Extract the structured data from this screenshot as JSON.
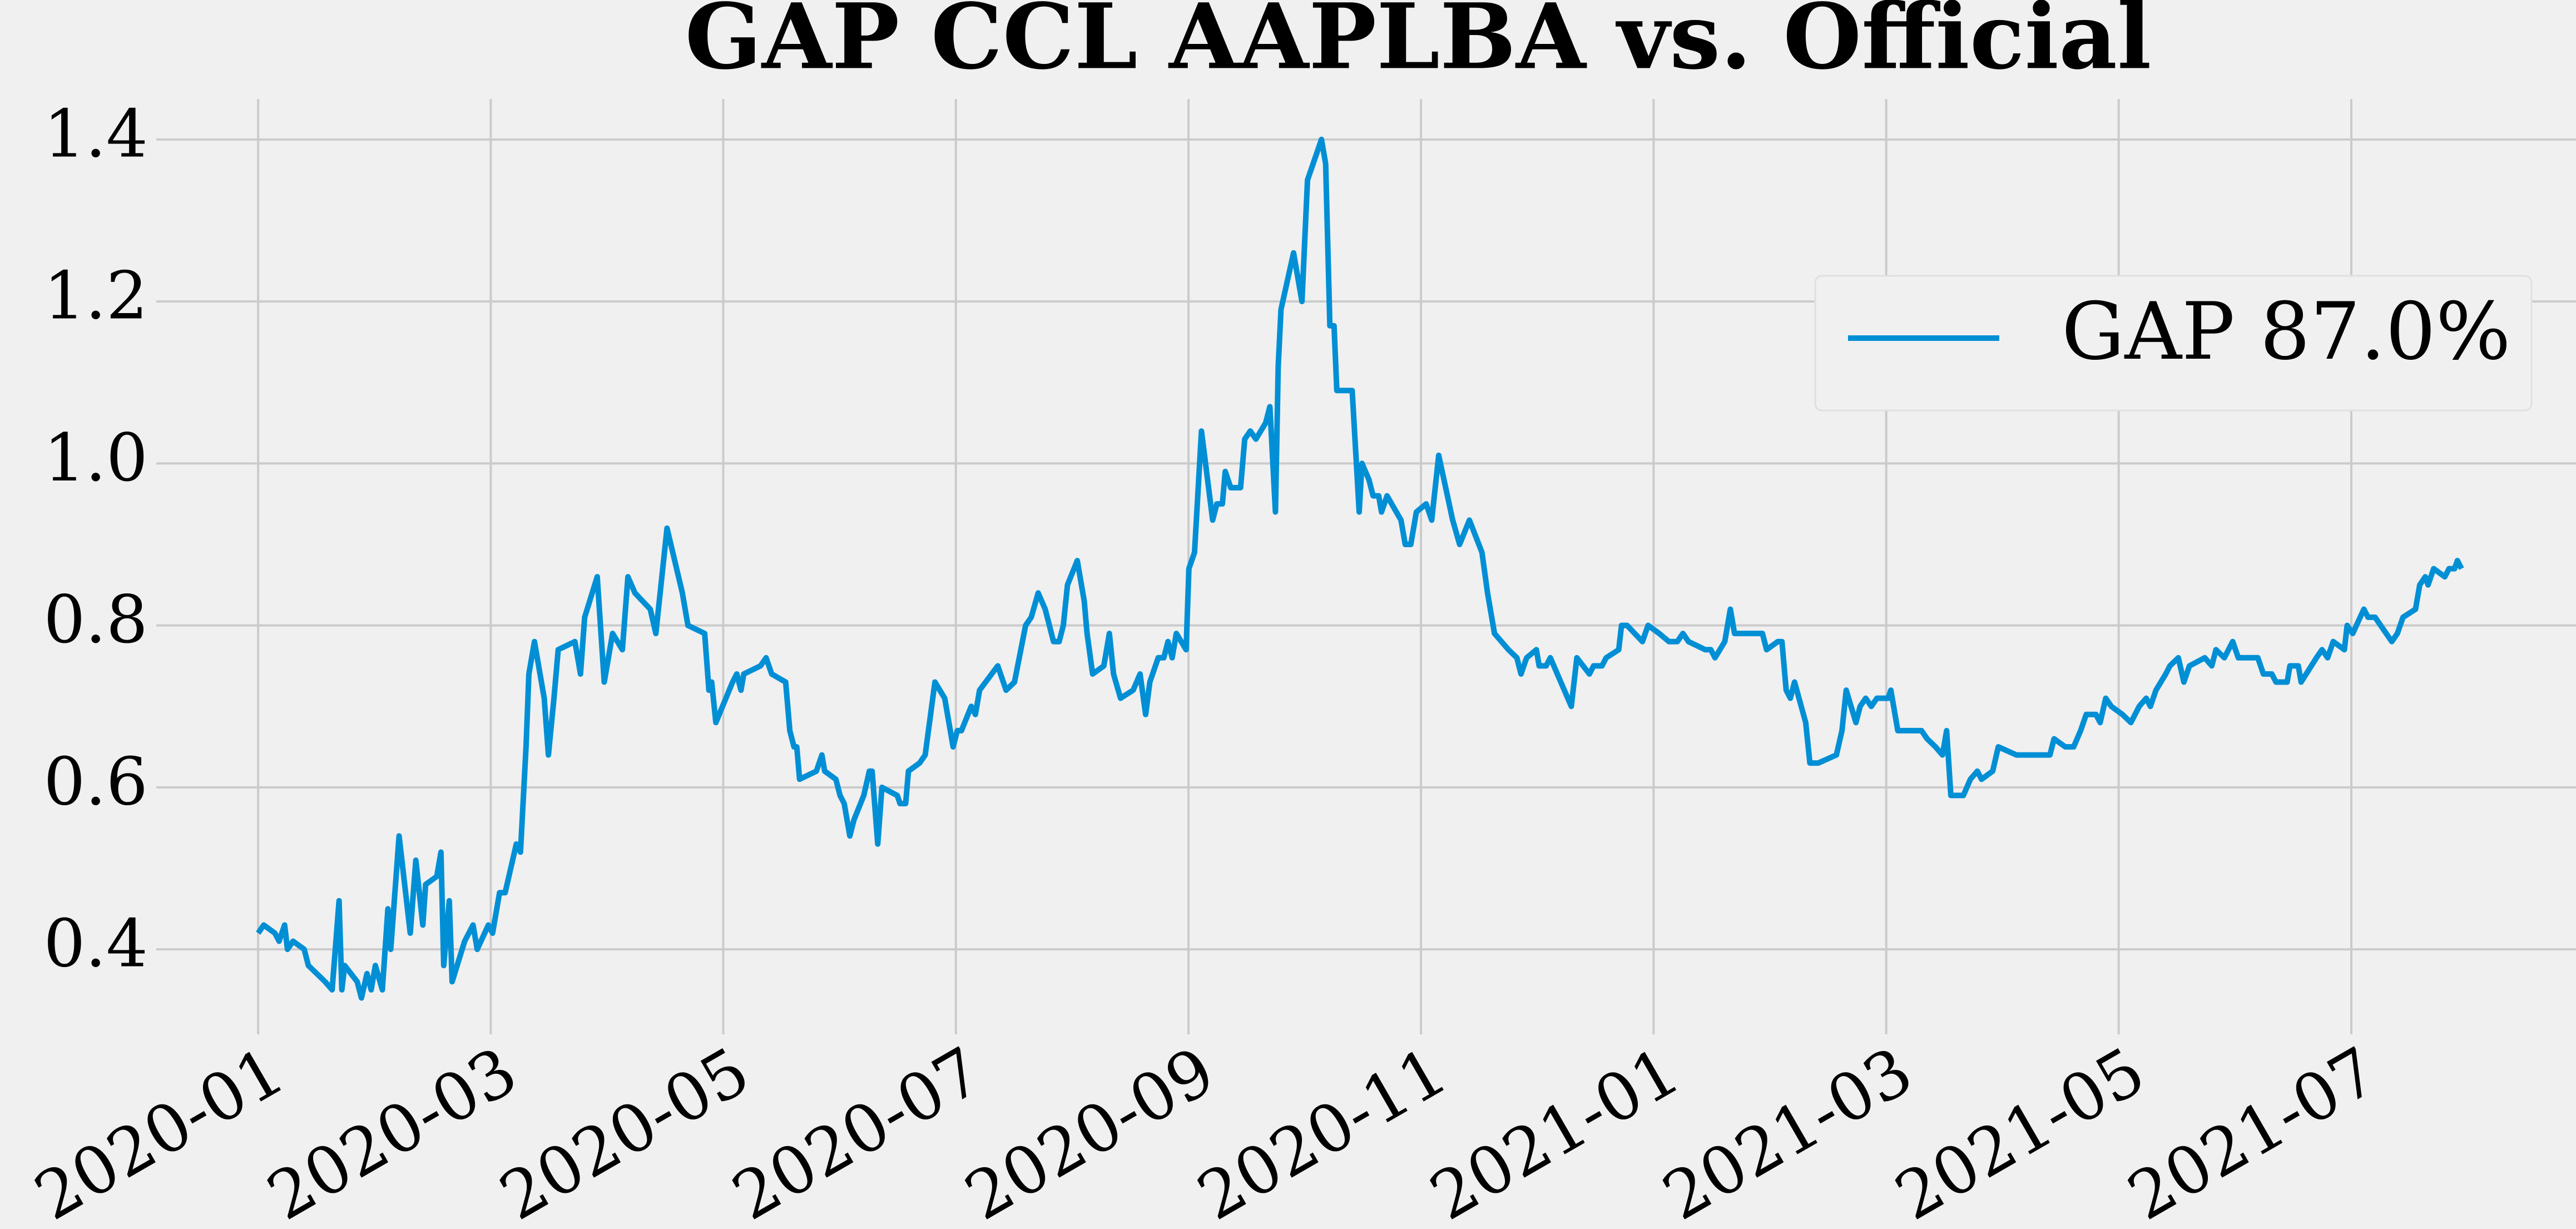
{
  "chart_data": {
    "type": "line",
    "title": "GAP CCL AAPLBA vs. Official",
    "x": [
      2020.0,
      2020.004,
      2020.012,
      2020.015,
      2020.019,
      2020.021,
      2020.025,
      2020.033,
      2020.036,
      2020.042,
      2020.048,
      2020.053,
      2020.058,
      2020.06,
      2020.062,
      2020.071,
      2020.074,
      2020.078,
      2020.081,
      2020.084,
      2020.089,
      2020.093,
      2020.095,
      2020.101,
      2020.109,
      2020.113,
      2020.118,
      2020.12,
      2020.128,
      2020.131,
      2020.133,
      2020.137,
      2020.139,
      2020.148,
      2020.154,
      2020.157,
      2020.165,
      2020.168,
      2020.173,
      2020.177,
      2020.185,
      2020.188,
      2020.192,
      2020.194,
      2020.198,
      2020.205,
      2020.208,
      2020.212,
      2020.215,
      2020.227,
      2020.231,
      2020.234,
      2020.243,
      2020.248,
      2020.254,
      2020.261,
      2020.265,
      2020.27,
      2020.281,
      2020.285,
      2020.293,
      2020.304,
      2020.308,
      2020.32,
      2020.323,
      2020.325,
      2020.328,
      2020.34,
      2020.343,
      2020.346,
      2020.348,
      2020.36,
      2020.364,
      2020.368,
      2020.378,
      2020.381,
      2020.384,
      2020.386,
      2020.388,
      2020.4,
      2020.404,
      2020.406,
      2020.414,
      2020.417,
      2020.42,
      2020.424,
      2020.427,
      2020.434,
      2020.438,
      2020.44,
      2020.444,
      2020.447,
      2020.458,
      2020.46,
      2020.464,
      2020.466,
      2020.474,
      2020.478,
      2020.485,
      2020.492,
      2020.498,
      2020.501,
      2020.504,
      2020.511,
      2020.514,
      2020.517,
      2020.53,
      2020.536,
      2020.542,
      2020.55,
      2020.554,
      2020.559,
      2020.564,
      2020.57,
      2020.574,
      2020.577,
      2020.58,
      2020.587,
      2020.592,
      2020.594,
      2020.598,
      2020.606,
      2020.61,
      2020.613,
      2020.618,
      2020.627,
      2020.632,
      2020.636,
      2020.639,
      2020.645,
      2020.649,
      2020.652,
      2020.655,
      2020.658,
      2020.665,
      2020.667,
      2020.671,
      2020.676,
      2020.684,
      2020.687,
      2020.691,
      2020.693,
      2020.697,
      2020.704,
      2020.707,
      2020.711,
      2020.715,
      2020.722,
      2020.725,
      2020.729,
      2020.731,
      2020.733,
      2020.742,
      2020.748,
      2020.752,
      2020.762,
      2020.765,
      2020.768,
      2020.771,
      2020.773,
      2020.784,
      2020.789,
      2020.791,
      2020.796,
      2020.799,
      2020.803,
      2020.805,
      2020.809,
      2020.819,
      2020.822,
      2020.826,
      2020.83,
      2020.837,
      2020.841,
      2020.846,
      2020.856,
      2020.861,
      2020.868,
      2020.877,
      2020.881,
      2020.886,
      2020.896,
      2020.902,
      2020.905,
      2020.909,
      2020.916,
      2020.918,
      2020.923,
      2020.926,
      2020.941,
      2020.945,
      2020.954,
      2020.957,
      2020.963,
      2020.966,
      2020.975,
      2020.977,
      2020.981,
      2020.992,
      2020.996,
      2021.004,
      2021.011,
      2021.017,
      2021.021,
      2021.025,
      2021.037,
      2021.041,
      2021.044,
      2021.051,
      2021.055,
      2021.058,
      2021.078,
      2021.081,
      2021.089,
      2021.092,
      2021.095,
      2021.098,
      2021.101,
      2021.109,
      2021.112,
      2021.118,
      2021.131,
      2021.135,
      2021.138,
      2021.145,
      2021.148,
      2021.152,
      2021.156,
      2021.16,
      2021.168,
      2021.17,
      2021.175,
      2021.192,
      2021.196,
      2021.202,
      2021.207,
      2021.21,
      2021.213,
      2021.222,
      2021.227,
      2021.232,
      2021.235,
      2021.243,
      2021.247,
      2021.26,
      2021.284,
      2021.287,
      2021.295,
      2021.301,
      2021.306,
      2021.31,
      2021.317,
      2021.32,
      2021.324,
      2021.328,
      2021.336,
      2021.342,
      2021.348,
      2021.353,
      2021.356,
      2021.36,
      2021.367,
      2021.37,
      2021.376,
      2021.38,
      2021.384,
      2021.395,
      2021.4,
      2021.403,
      2021.409,
      2021.415,
      2021.419,
      2021.433,
      2021.437,
      2021.443,
      2021.446,
      2021.454,
      2021.456,
      2021.462,
      2021.464,
      2021.475,
      2021.479,
      2021.483,
      2021.487,
      2021.495,
      2021.497,
      2021.501,
      2021.509,
      2021.512,
      2021.517,
      2021.525,
      2021.529,
      2021.533,
      2021.537,
      2021.546,
      2021.549,
      2021.553,
      2021.555,
      2021.559,
      2021.567,
      2021.57,
      2021.574,
      2021.576,
      2021.579
    ],
    "series": [
      {
        "name": "GAP 87.0%",
        "color": "#008fd5",
        "values": [
          0.42,
          0.43,
          0.42,
          0.41,
          0.43,
          0.4,
          0.41,
          0.4,
          0.38,
          0.37,
          0.36,
          0.35,
          0.46,
          0.35,
          0.38,
          0.36,
          0.34,
          0.37,
          0.35,
          0.38,
          0.35,
          0.45,
          0.4,
          0.54,
          0.42,
          0.51,
          0.43,
          0.48,
          0.49,
          0.52,
          0.38,
          0.46,
          0.36,
          0.41,
          0.43,
          0.4,
          0.43,
          0.42,
          0.47,
          0.47,
          0.53,
          0.52,
          0.65,
          0.74,
          0.78,
          0.71,
          0.64,
          0.71,
          0.77,
          0.78,
          0.74,
          0.81,
          0.86,
          0.73,
          0.79,
          0.77,
          0.86,
          0.84,
          0.82,
          0.79,
          0.92,
          0.84,
          0.8,
          0.79,
          0.72,
          0.73,
          0.68,
          0.73,
          0.74,
          0.72,
          0.74,
          0.75,
          0.76,
          0.74,
          0.73,
          0.67,
          0.65,
          0.65,
          0.61,
          0.62,
          0.64,
          0.62,
          0.61,
          0.59,
          0.58,
          0.54,
          0.56,
          0.59,
          0.62,
          0.62,
          0.53,
          0.6,
          0.59,
          0.58,
          0.58,
          0.62,
          0.63,
          0.64,
          0.73,
          0.71,
          0.65,
          0.67,
          0.67,
          0.7,
          0.69,
          0.72,
          0.75,
          0.72,
          0.73,
          0.8,
          0.81,
          0.84,
          0.82,
          0.78,
          0.78,
          0.8,
          0.85,
          0.88,
          0.83,
          0.79,
          0.74,
          0.75,
          0.79,
          0.74,
          0.71,
          0.72,
          0.74,
          0.69,
          0.73,
          0.76,
          0.76,
          0.78,
          0.76,
          0.79,
          0.77,
          0.87,
          0.89,
          1.04,
          0.93,
          0.95,
          0.95,
          0.99,
          0.97,
          0.97,
          1.03,
          1.04,
          1.03,
          1.05,
          1.07,
          0.94,
          1.12,
          1.19,
          1.26,
          1.2,
          1.35,
          1.4,
          1.37,
          1.17,
          1.17,
          1.09,
          1.09,
          0.94,
          1.0,
          0.98,
          0.96,
          0.96,
          0.94,
          0.96,
          0.93,
          0.9,
          0.9,
          0.94,
          0.95,
          0.93,
          1.01,
          0.93,
          0.9,
          0.93,
          0.89,
          0.84,
          0.79,
          0.77,
          0.76,
          0.74,
          0.76,
          0.77,
          0.75,
          0.75,
          0.76,
          0.7,
          0.76,
          0.74,
          0.75,
          0.75,
          0.76,
          0.77,
          0.8,
          0.8,
          0.78,
          0.8,
          0.79,
          0.78,
          0.78,
          0.79,
          0.78,
          0.77,
          0.77,
          0.76,
          0.78,
          0.82,
          0.79,
          0.79,
          0.77,
          0.78,
          0.78,
          0.72,
          0.71,
          0.73,
          0.68,
          0.63,
          0.63,
          0.64,
          0.67,
          0.72,
          0.68,
          0.7,
          0.71,
          0.7,
          0.71,
          0.71,
          0.72,
          0.67,
          0.67,
          0.66,
          0.65,
          0.64,
          0.67,
          0.59,
          0.59,
          0.61,
          0.62,
          0.61,
          0.62,
          0.65,
          0.64,
          0.64,
          0.66,
          0.65,
          0.65,
          0.67,
          0.69,
          0.69,
          0.68,
          0.71,
          0.7,
          0.69,
          0.68,
          0.7,
          0.71,
          0.7,
          0.72,
          0.74,
          0.75,
          0.76,
          0.73,
          0.75,
          0.76,
          0.75,
          0.77,
          0.76,
          0.78,
          0.76,
          0.76,
          0.74,
          0.74,
          0.73,
          0.73,
          0.75,
          0.75,
          0.73,
          0.76,
          0.77,
          0.76,
          0.78,
          0.77,
          0.8,
          0.79,
          0.82,
          0.81,
          0.81,
          0.79,
          0.78,
          0.79,
          0.81,
          0.82,
          0.85,
          0.86,
          0.85,
          0.87,
          0.86,
          0.87,
          0.87,
          0.88,
          0.87
        ]
      }
    ],
    "xlim": [
      2019.927,
      2021.661
    ],
    "xticks": [
      {
        "value": 2020,
        "label": "2020-01"
      },
      {
        "value": 2020.1667,
        "label": "2020-03"
      },
      {
        "value": 2020.3333,
        "label": "2020-05"
      },
      {
        "value": 2020.5,
        "label": "2020-07"
      },
      {
        "value": 2020.6667,
        "label": "2020-09"
      },
      {
        "value": 2020.8333,
        "label": "2020-11"
      },
      {
        "value": 2021,
        "label": "2021-01"
      },
      {
        "value": 2021.1667,
        "label": "2021-03"
      },
      {
        "value": 2021.3333,
        "label": "2021-05"
      },
      {
        "value": 2021.5,
        "label": "2021-07"
      }
    ],
    "ylim": [
      0.295,
      1.45
    ],
    "yticks": [
      0.4,
      0.6,
      0.8,
      {
        "value": 1.0,
        "label": "1.0"
      },
      1.2,
      1.4
    ],
    "grid": true,
    "legend": "upper right"
  }
}
